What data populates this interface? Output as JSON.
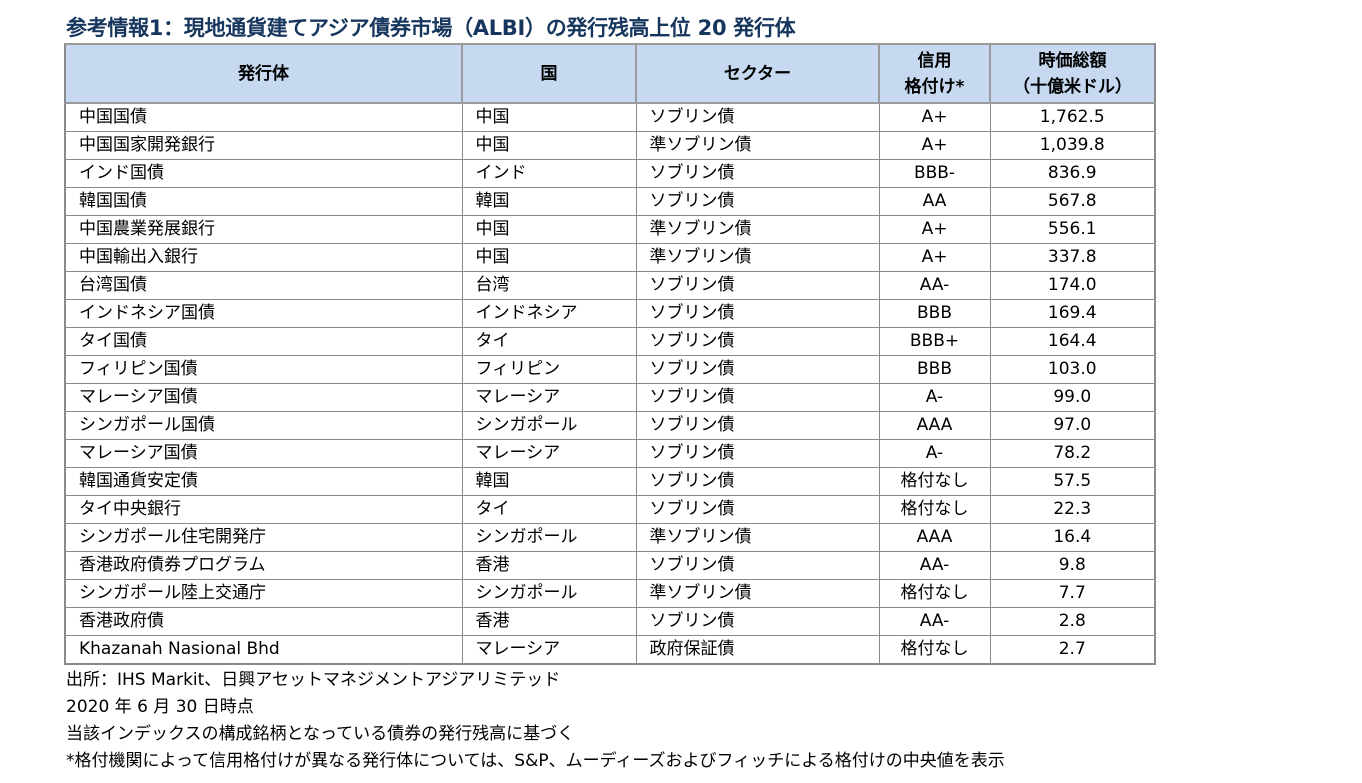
{
  "title": "参考情報1：現地通貨建てアジア債券市場（ALBI）の発行残高上位 20 発行体",
  "table": {
    "headers": {
      "issuer": "発行体",
      "country": "国",
      "sector": "セクター",
      "rating_line1": "信用",
      "rating_line2": "格付け*",
      "value_line1": "時価総額",
      "value_line2": "（十億米ドル）"
    },
    "rows": [
      {
        "issuer": "中国国債",
        "country": "中国",
        "sector": "ソブリン債",
        "rating": "A+",
        "value": "1,762.5"
      },
      {
        "issuer": "中国国家開発銀行",
        "country": "中国",
        "sector": "準ソブリン債",
        "rating": "A+",
        "value": "1,039.8"
      },
      {
        "issuer": "インド国債",
        "country": "インド",
        "sector": "ソブリン債",
        "rating": "BBB-",
        "value": "836.9"
      },
      {
        "issuer": "韓国国債",
        "country": "韓国",
        "sector": "ソブリン債",
        "rating": "AA",
        "value": "567.8"
      },
      {
        "issuer": "中国農業発展銀行",
        "country": "中国",
        "sector": "準ソブリン債",
        "rating": "A+",
        "value": "556.1"
      },
      {
        "issuer": "中国輸出入銀行",
        "country": "中国",
        "sector": "準ソブリン債",
        "rating": "A+",
        "value": "337.8"
      },
      {
        "issuer": "台湾国債",
        "country": "台湾",
        "sector": "ソブリン債",
        "rating": "AA-",
        "value": "174.0"
      },
      {
        "issuer": "インドネシア国債",
        "country": "インドネシア",
        "sector": "ソブリン債",
        "rating": "BBB",
        "value": "169.4"
      },
      {
        "issuer": "タイ国債",
        "country": "タイ",
        "sector": "ソブリン債",
        "rating": "BBB+",
        "value": "164.4"
      },
      {
        "issuer": "フィリピン国債",
        "country": "フィリピン",
        "sector": "ソブリン債",
        "rating": "BBB",
        "value": "103.0"
      },
      {
        "issuer": "マレーシア国債",
        "country": "マレーシア",
        "sector": "ソブリン債",
        "rating": "A-",
        "value": "99.0"
      },
      {
        "issuer": "シンガポール国債",
        "country": "シンガポール",
        "sector": "ソブリン債",
        "rating": "AAA",
        "value": "97.0"
      },
      {
        "issuer": "マレーシア国債",
        "country": "マレーシア",
        "sector": "ソブリン債",
        "rating": "A-",
        "value": "78.2"
      },
      {
        "issuer": "韓国通貨安定債",
        "country": "韓国",
        "sector": "ソブリン債",
        "rating": "格付なし",
        "value": "57.5"
      },
      {
        "issuer": "タイ中央銀行",
        "country": "タイ",
        "sector": "ソブリン債",
        "rating": "格付なし",
        "value": "22.3"
      },
      {
        "issuer": "シンガポール住宅開発庁",
        "country": "シンガポール",
        "sector": "準ソブリン債",
        "rating": "AAA",
        "value": "16.4"
      },
      {
        "issuer": "香港政府債券プログラム",
        "country": "香港",
        "sector": "ソブリン債",
        "rating": "AA-",
        "value": "9.8"
      },
      {
        "issuer": "シンガポール陸上交通庁",
        "country": "シンガポール",
        "sector": "準ソブリン債",
        "rating": "格付なし",
        "value": "7.7"
      },
      {
        "issuer": "香港政府債",
        "country": "香港",
        "sector": "ソブリン債",
        "rating": "AA-",
        "value": "2.8"
      },
      {
        "issuer": "Khazanah Nasional Bhd",
        "country": "マレーシア",
        "sector": "政府保証債",
        "rating": "格付なし",
        "value": "2.7"
      }
    ]
  },
  "notes": {
    "source": "出所：IHS Markit、日興アセットマネジメントアジアリミテッド",
    "as_of": "2020 年 6 月 30 日時点",
    "basis": "当該インデックスの構成銘柄となっている債券の発行残高に基づく",
    "rating_note": "*格付機関によって信用格付けが異なる発行体については、S&P、ムーディーズおよびフィッチによる格付けの中央値を表示"
  }
}
